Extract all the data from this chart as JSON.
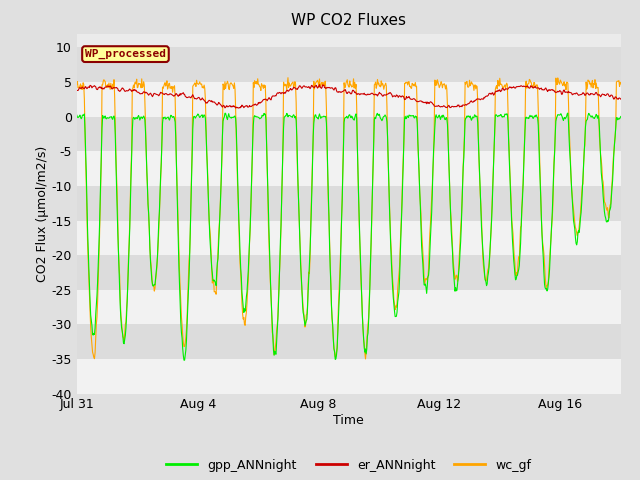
{
  "title": "WP CO2 Fluxes",
  "xlabel": "Time",
  "ylabel": "CO2 Flux (μmol/m2/s)",
  "ylim": [
    -40,
    12
  ],
  "yticks": [
    10,
    5,
    0,
    -5,
    -10,
    -15,
    -20,
    -25,
    -30,
    -35,
    -40
  ],
  "x_tick_labels": [
    "Jul 31",
    "Aug 4",
    "Aug 8",
    "Aug 12",
    "Aug 16"
  ],
  "x_tick_pos": [
    0,
    4,
    8,
    12,
    16
  ],
  "annotation_text": "WP_processed",
  "annotation_color": "#8B0000",
  "annotation_bg": "#FFFF99",
  "line_colors": {
    "gpp": "#00EE00",
    "er": "#CC0000",
    "wc": "#FFA500"
  },
  "legend_labels": [
    "gpp_ANNnight",
    "er_ANNnight",
    "wc_gf"
  ],
  "fig_bg_color": "#E0E0E0",
  "plot_bg_color": "#EBEBEB",
  "grid_color": "#FFFFFF",
  "n_days": 18,
  "n_points_per_day": 48,
  "band_colors": [
    "#DCDCDC",
    "#F0F0F0"
  ]
}
